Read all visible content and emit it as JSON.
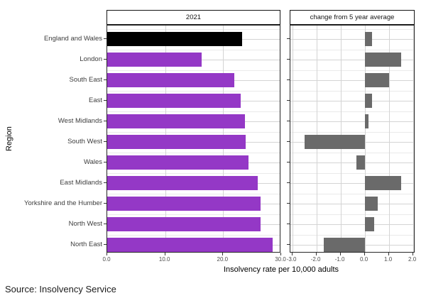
{
  "figure": {
    "y_axis_title": "Region",
    "x_axis_title": "Insolvency rate per 10,000 adults",
    "source": "Source: Insolvency Service"
  },
  "colors": {
    "highlight_bar": "#000000",
    "region_bar": "#9438C6",
    "change_bar": "#6A6A6A",
    "grid_major": "#D4D4D4",
    "grid_minor": "#EAEAEA"
  },
  "regions": [
    "England and Wales",
    "London",
    "South East",
    "East",
    "West Midlands",
    "South West",
    "Wales",
    "East Midlands",
    "Yorkshire and the Humber",
    "North West",
    "North East"
  ],
  "chart_data": [
    {
      "type": "bar",
      "orientation": "horizontal",
      "title": "2021",
      "categories": [
        "England and Wales",
        "London",
        "South East",
        "East",
        "West Midlands",
        "South West",
        "Wales",
        "East Midlands",
        "Yorkshire and the Humber",
        "North West",
        "North East"
      ],
      "values": [
        23.3,
        16.3,
        21.9,
        23.0,
        23.8,
        23.9,
        24.4,
        25.9,
        26.4,
        26.4,
        28.5
      ],
      "xlim": [
        0,
        30
      ],
      "xticks": [
        0,
        10,
        20,
        30
      ],
      "xtick_labels": [
        "0.0",
        "10.0",
        "20.0",
        "30.0"
      ],
      "highlight_category": "England and Wales",
      "grid": true,
      "legend": false
    },
    {
      "type": "bar",
      "orientation": "horizontal",
      "title": "change from 5 year average",
      "categories": [
        "England and Wales",
        "London",
        "South East",
        "East",
        "West Midlands",
        "South West",
        "Wales",
        "East Midlands",
        "Yorkshire and the Humber",
        "North West",
        "North East"
      ],
      "values": [
        0.3,
        1.5,
        1.0,
        0.3,
        0.15,
        -2.5,
        -0.35,
        1.5,
        0.55,
        0.4,
        -1.7
      ],
      "xlim": [
        -3,
        2
      ],
      "xticks": [
        -3,
        -2,
        -1,
        0,
        1,
        2
      ],
      "xtick_labels": [
        "-3.0",
        "-2.0",
        "-1.0",
        "0.0",
        "1.0",
        "2.0"
      ],
      "grid": true,
      "legend": false
    }
  ]
}
